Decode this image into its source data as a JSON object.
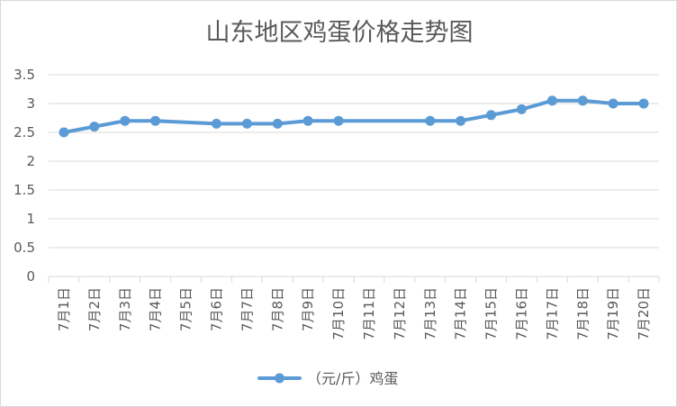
{
  "chart_data": {
    "type": "line",
    "title": "山东地区鸡蛋价格走势图",
    "xlabel": "",
    "ylabel": "",
    "categories": [
      "7月1日",
      "7月2日",
      "7月3日",
      "7月4日",
      "7月5日",
      "7月6日",
      "7月7日",
      "7月8日",
      "7月9日",
      "7月10日",
      "7月11日",
      "7月12日",
      "7月13日",
      "7月14日",
      "7月15日",
      "7月16日",
      "7月17日",
      "7月18日",
      "7月19日",
      "7月20日"
    ],
    "series": [
      {
        "name": "（元/斤）鸡蛋",
        "values": [
          2.5,
          2.6,
          2.7,
          2.7,
          null,
          2.65,
          2.65,
          2.65,
          2.7,
          2.7,
          null,
          null,
          2.7,
          2.7,
          2.8,
          2.9,
          3.05,
          3.05,
          3.0,
          3.0
        ]
      }
    ],
    "ylim": [
      0,
      3.5
    ],
    "yticks": [
      "0",
      "0.5",
      "1",
      "1.5",
      "2",
      "2.5",
      "3",
      "3.5"
    ],
    "ytick_values": [
      0,
      0.5,
      1,
      1.5,
      2,
      2.5,
      3,
      3.5
    ],
    "grid": true,
    "legend_position": "bottom",
    "gaps": "span",
    "line_color": "#5b9bd5",
    "grid_color": "#d9d9d9",
    "text_color": "#595959"
  }
}
